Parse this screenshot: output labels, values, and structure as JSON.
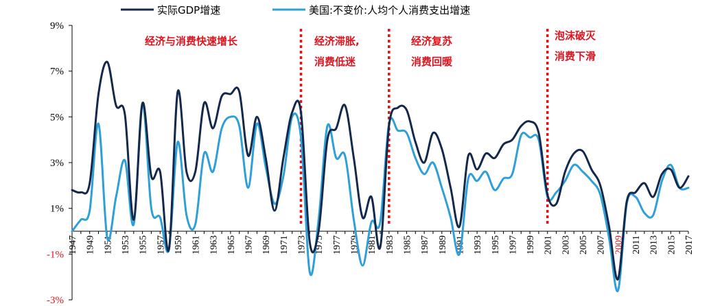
{
  "chart_data": {
    "type": "line",
    "title": "",
    "xlabel": "",
    "ylabel": "",
    "x": [
      1947,
      1948,
      1949,
      1950,
      1951,
      1952,
      1953,
      1954,
      1955,
      1956,
      1957,
      1958,
      1959,
      1960,
      1961,
      1962,
      1963,
      1964,
      1965,
      1966,
      1967,
      1968,
      1969,
      1970,
      1971,
      1972,
      1973,
      1974,
      1975,
      1976,
      1977,
      1978,
      1979,
      1980,
      1981,
      1982,
      1983,
      1984,
      1985,
      1986,
      1987,
      1988,
      1989,
      1990,
      1991,
      1992,
      1993,
      1994,
      1995,
      1996,
      1997,
      1998,
      1999,
      2000,
      2001,
      2002,
      2003,
      2004,
      2005,
      2006,
      2007,
      2008,
      2009,
      2010,
      2011,
      2012,
      2013,
      2014,
      2015,
      2016,
      2017
    ],
    "xlim": [
      1947,
      2017
    ],
    "x_ticks": [
      "1947",
      "1949",
      "1951",
      "1953",
      "1955",
      "1957",
      "1959",
      "1961",
      "1963",
      "1965",
      "1967",
      "1969",
      "1971",
      "1973",
      "1975",
      "1977",
      "1979",
      "1981",
      "1983",
      "1985",
      "1987",
      "1989",
      "1991",
      "1993",
      "1995",
      "1997",
      "1999",
      "2001",
      "2003",
      "2005",
      "2007",
      "2009",
      "2011",
      "2013",
      "2015",
      "2017"
    ],
    "y_ticks": [
      "9%",
      "7%",
      "5%",
      "3%",
      "1%",
      "-1%",
      "-3%"
    ],
    "ylim": [
      -3,
      9
    ],
    "grid": false,
    "legend_position": "top",
    "series": [
      {
        "name": "实际GDP增速",
        "color": "#14284b",
        "values": [
          1.8,
          1.7,
          2.1,
          6.0,
          7.4,
          5.5,
          5.1,
          0.5,
          5.6,
          2.4,
          2.6,
          -0.8,
          6.1,
          2.6,
          2.6,
          5.6,
          4.5,
          5.9,
          6.0,
          6.1,
          3.3,
          5.0,
          3.2,
          0.9,
          3.2,
          5.2,
          5.2,
          -0.5,
          0.0,
          4.0,
          4.5,
          5.5,
          3.2,
          0.6,
          1.5,
          -0.7,
          4.6,
          5.4,
          5.3,
          3.9,
          3.0,
          4.3,
          3.6,
          1.9,
          0.2,
          3.3,
          2.7,
          3.4,
          3.2,
          3.8,
          4.0,
          4.6,
          4.8,
          4.3,
          1.6,
          1.2,
          2.6,
          3.4,
          3.5,
          2.7,
          2.0,
          0.2,
          -2.1,
          1.3,
          1.7,
          2.1,
          1.5,
          2.5,
          2.7,
          1.9,
          2.4
        ]
      },
      {
        "name": "美国:不变价:人均个人消费支出增速",
        "color": "#2e9fd7",
        "values": [
          0.0,
          0.5,
          0.9,
          4.7,
          -0.3,
          1.5,
          3.1,
          0.3,
          5.6,
          1.0,
          0.6,
          -0.8,
          3.9,
          0.7,
          0.3,
          3.4,
          2.6,
          4.5,
          5.0,
          4.6,
          1.9,
          4.7,
          2.8,
          1.2,
          2.4,
          5.0,
          4.1,
          -1.8,
          0.5,
          4.6,
          3.2,
          3.3,
          0.5,
          -1.5,
          0.4,
          0.4,
          4.7,
          4.4,
          4.3,
          3.2,
          2.5,
          3.0,
          1.9,
          0.6,
          -1.0,
          2.3,
          2.2,
          2.6,
          1.8,
          2.3,
          2.5,
          4.2,
          4.1,
          4.0,
          1.5,
          1.7,
          2.2,
          2.9,
          2.6,
          2.2,
          1.6,
          -0.3,
          -2.6,
          1.2,
          1.5,
          0.8,
          0.7,
          2.2,
          2.9,
          1.9,
          1.9
        ]
      }
    ],
    "periods": [
      {
        "label_lines": [
          "经济与消费快速增长"
        ]
      },
      {
        "label_lines": [
          "经济滞胀,",
          "消费低迷"
        ]
      },
      {
        "label_lines": [
          "经济复苏",
          "消费回暖"
        ]
      },
      {
        "label_lines": [
          "泡沫破灭",
          "消费下滑"
        ]
      }
    ],
    "dividers": [
      1973,
      1983,
      2001
    ],
    "divider_color": "#e0141e",
    "annotation_color": "#e0141e"
  }
}
